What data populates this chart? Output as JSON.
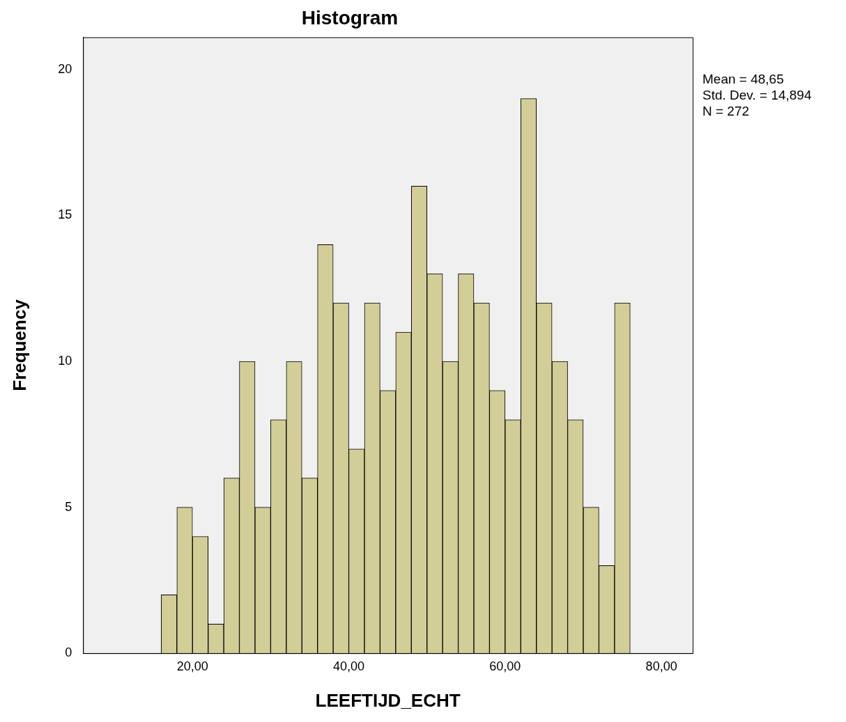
{
  "chart_data": {
    "type": "histogram",
    "title": "Histogram",
    "xlabel": "LEEFTIJD_ECHT",
    "ylabel": "Frequency",
    "bins": [
      16,
      18,
      20,
      22,
      24,
      26,
      28,
      30,
      32,
      34,
      36,
      38,
      40,
      42,
      44,
      46,
      48,
      50,
      52,
      54,
      56,
      58,
      60,
      62,
      64,
      66,
      68,
      70,
      72,
      74,
      76
    ],
    "values": [
      2,
      5,
      4,
      1,
      6,
      10,
      5,
      8,
      10,
      6,
      14,
      12,
      7,
      12,
      9,
      11,
      16,
      13,
      10,
      13,
      12,
      9,
      8,
      19,
      12,
      10,
      8,
      5,
      3,
      12
    ],
    "color": "#d3ce97",
    "xlim": [
      6,
      84
    ],
    "xticks": [
      {
        "value": 20,
        "label": "20,00"
      },
      {
        "value": 40,
        "label": "40,00"
      },
      {
        "value": 60,
        "label": "60,00"
      },
      {
        "value": 80,
        "label": "80,00"
      }
    ],
    "ylim": [
      0,
      21.1
    ],
    "yticks": [
      0,
      5,
      10,
      15,
      20
    ],
    "annotations": [
      "Mean = 48,65",
      "Std. Dev. = 14,894",
      "N = 272"
    ]
  }
}
